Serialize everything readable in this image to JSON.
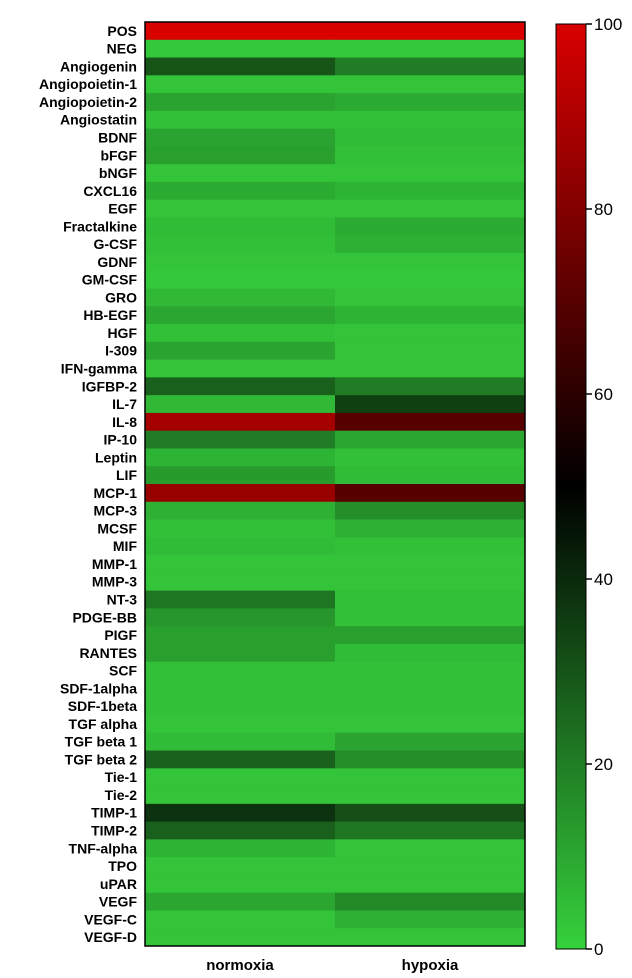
{
  "chart_data": {
    "type": "heatmap",
    "title": "",
    "columns": [
      "normoxia",
      "hypoxia"
    ],
    "rows": [
      "POS",
      "NEG",
      "Angiogenin",
      "Angiopoietin-1",
      "Angiopoietin-2",
      "Angiostatin",
      "BDNF",
      "bFGF",
      "bNGF",
      "CXCL16",
      "EGF",
      "Fractalkine",
      "G-CSF",
      "GDNF",
      "GM-CSF",
      "GRO",
      "HB-EGF",
      "HGF",
      "I-309",
      "IFN-gamma",
      "IGFBP-2",
      "IL-7",
      "IL-8",
      "IP-10",
      "Leptin",
      "LIF",
      "MCP-1",
      "MCP-3",
      "MCSF",
      "MIF",
      "MMP-1",
      "MMP-3",
      "NT-3",
      "PDGE-BB",
      "PIGF",
      "RANTES",
      "SCF",
      "SDF-1alpha",
      "SDF-1beta",
      "TGF alpha",
      "TGF beta 1",
      "TGF beta 2",
      "Tie-1",
      "Tie-2",
      "TIMP-1",
      "TIMP-2",
      "TNF-alpha",
      "TPO",
      "uPAR",
      "VEGF",
      "VEGF-C",
      "VEGF-D"
    ],
    "values": [
      [
        100,
        100
      ],
      [
        2,
        2
      ],
      [
        30,
        20
      ],
      [
        3,
        3
      ],
      [
        11,
        9
      ],
      [
        4,
        4
      ],
      [
        11,
        5
      ],
      [
        12,
        4
      ],
      [
        3,
        3
      ],
      [
        9,
        7
      ],
      [
        3,
        3
      ],
      [
        5,
        9
      ],
      [
        4,
        8
      ],
      [
        3,
        3
      ],
      [
        2,
        2
      ],
      [
        6,
        3
      ],
      [
        10,
        7
      ],
      [
        4,
        3
      ],
      [
        11,
        3
      ],
      [
        3,
        3
      ],
      [
        27,
        20
      ],
      [
        6,
        35
      ],
      [
        88,
        70
      ],
      [
        20,
        10
      ],
      [
        7,
        4
      ],
      [
        13,
        5
      ],
      [
        85,
        70
      ],
      [
        8,
        16
      ],
      [
        4,
        8
      ],
      [
        5,
        4
      ],
      [
        3,
        3
      ],
      [
        3,
        3
      ],
      [
        22,
        4
      ],
      [
        14,
        4
      ],
      [
        12,
        12
      ],
      [
        12,
        5
      ],
      [
        4,
        4
      ],
      [
        4,
        4
      ],
      [
        4,
        4
      ],
      [
        3,
        3
      ],
      [
        5,
        11
      ],
      [
        27,
        16
      ],
      [
        3,
        3
      ],
      [
        3,
        3
      ],
      [
        38,
        31
      ],
      [
        27,
        22
      ],
      [
        7,
        3
      ],
      [
        3,
        3
      ],
      [
        3,
        3
      ],
      [
        10,
        17
      ],
      [
        3,
        8
      ],
      [
        3,
        3
      ]
    ],
    "colorbar": {
      "min": 0,
      "max": 100,
      "ticks": [
        0,
        20,
        40,
        60,
        80,
        100
      ],
      "stops": [
        "#36d13d",
        "#000000",
        "#d90000"
      ]
    }
  }
}
